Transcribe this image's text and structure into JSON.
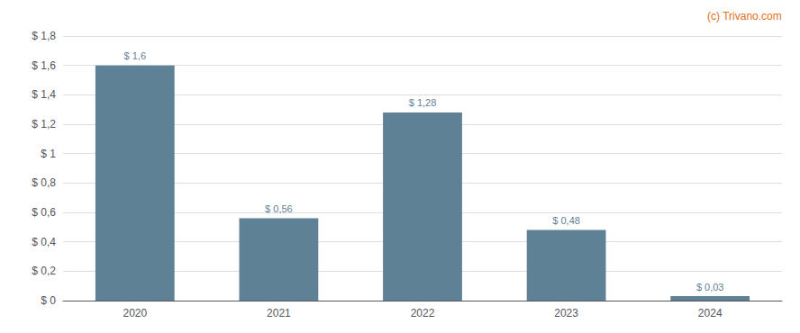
{
  "chart_data": {
    "type": "bar",
    "categories": [
      "2020",
      "2021",
      "2022",
      "2023",
      "2024"
    ],
    "values": [
      1.6,
      0.56,
      1.28,
      0.48,
      0.03
    ],
    "value_labels": [
      "$ 1,6",
      "$ 0,56",
      "$ 1,28",
      "$ 0,48",
      "$ 0,03"
    ],
    "data_labels": true,
    "color": "#5f8196",
    "ylim": [
      0,
      1.8
    ],
    "yticks": [
      {
        "value": 0,
        "label": "$ 0"
      },
      {
        "value": 0.2,
        "label": "$ 0,2"
      },
      {
        "value": 0.4,
        "label": "$ 0,4"
      },
      {
        "value": 0.6,
        "label": "$ 0,6"
      },
      {
        "value": 0.8,
        "label": "$ 0,8"
      },
      {
        "value": 1.0,
        "label": "$ 1"
      },
      {
        "value": 1.2,
        "label": "$ 1,2"
      },
      {
        "value": 1.4,
        "label": "$ 1,4"
      },
      {
        "value": 1.6,
        "label": "$ 1,6"
      },
      {
        "value": 1.8,
        "label": "$ 1,8"
      }
    ],
    "grid": true,
    "annotations": [
      "(c) Trivano.com"
    ]
  }
}
